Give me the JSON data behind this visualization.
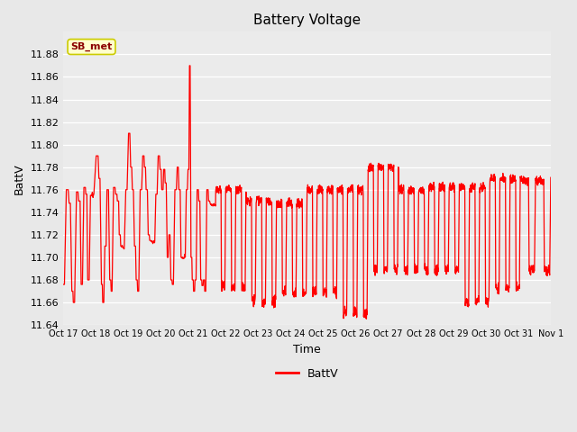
{
  "title": "Battery Voltage",
  "xlabel": "Time",
  "ylabel": "BattV",
  "legend_label": "BattV",
  "line_color": "#FF0000",
  "bg_color": "#E8E8E8",
  "plot_bg_color": "#EBEBEB",
  "grid_color": "#FFFFFF",
  "ylim": [
    11.64,
    11.9
  ],
  "yticks": [
    11.64,
    11.66,
    11.68,
    11.7,
    11.72,
    11.74,
    11.76,
    11.78,
    11.8,
    11.82,
    11.84,
    11.86,
    11.88
  ],
  "xtick_labels": [
    "Oct 17",
    "Oct 18",
    "Oct 19",
    "Oct 20",
    "Oct 21",
    "Oct 22",
    "Oct 23",
    "Oct 24",
    "Oct 25",
    "Oct 26",
    "Oct 27",
    "Oct 28",
    "Oct 29",
    "Oct 30",
    "Oct 31",
    "Nov 1"
  ],
  "annotation_text": "SB_met",
  "annotation_bg": "#FFFFCC",
  "annotation_border": "#CCCC00",
  "annotation_color": "#8B0000",
  "figsize": [
    6.4,
    4.8
  ],
  "dpi": 100
}
